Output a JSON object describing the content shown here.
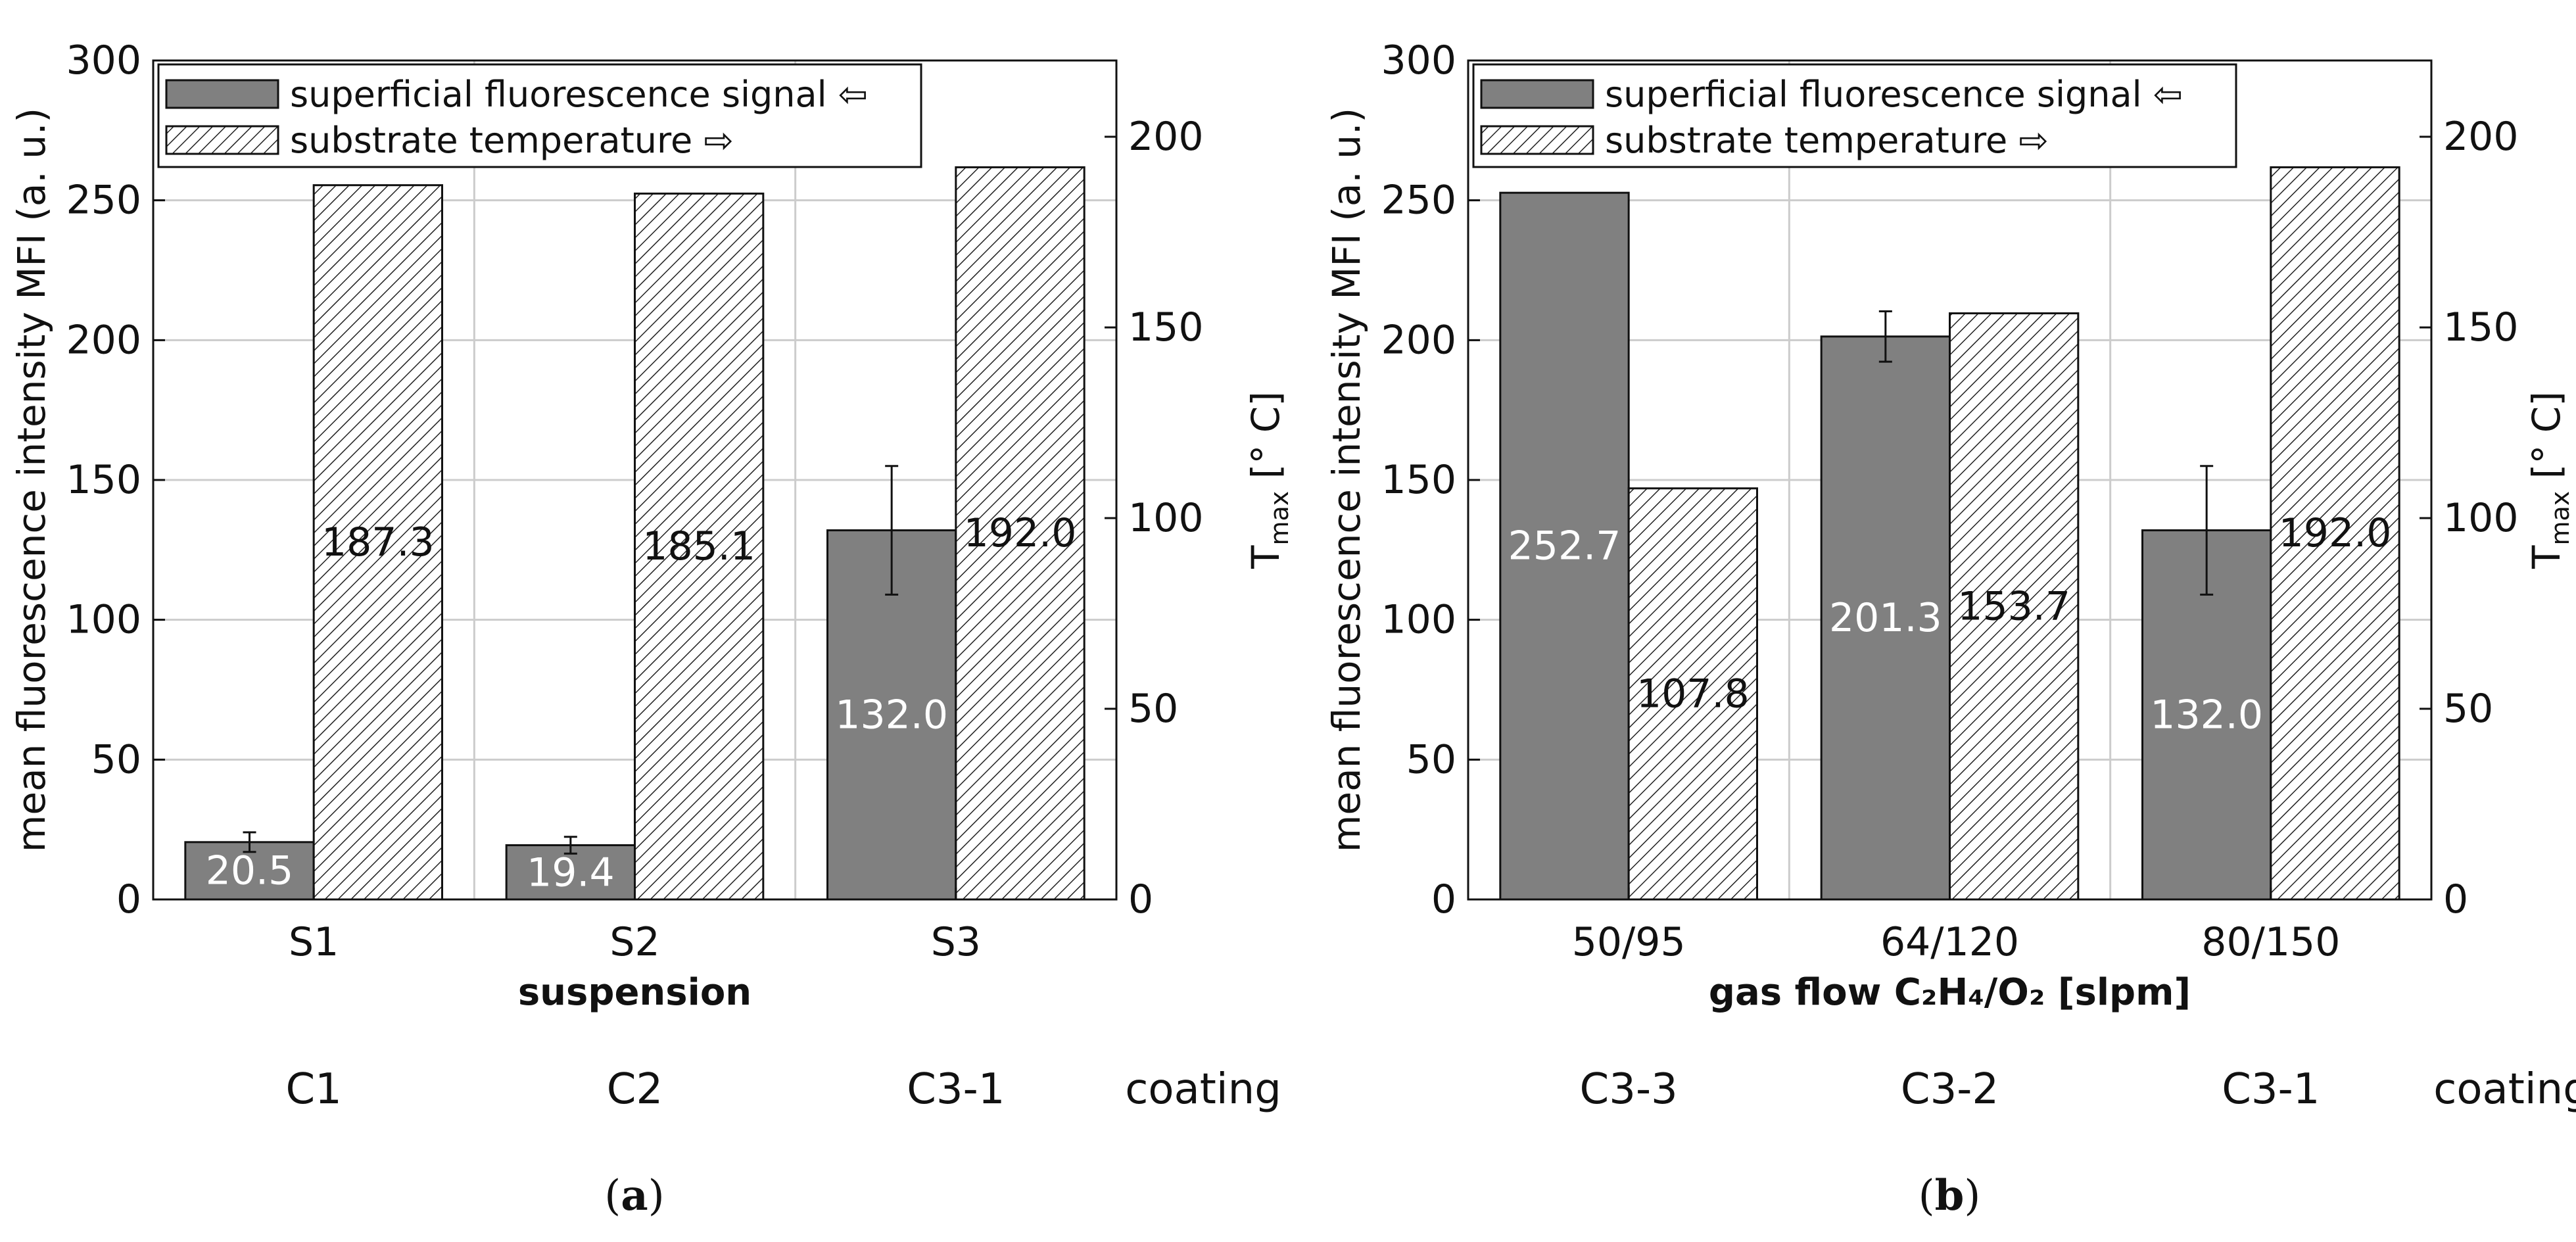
{
  "chart_data": [
    {
      "type": "bar",
      "panel_label": "a",
      "categories": [
        "S1",
        "S2",
        "S3"
      ],
      "coatings": [
        "C1",
        "C2",
        "C3-1"
      ],
      "coating_label": "coating",
      "xlabel": "suspension",
      "ylabel": "mean fluorescence intensity MFI (a. u.)",
      "y2label_main": "T",
      "y2label_sub": "max",
      "y2label_unit": " [° C]",
      "ylim": [
        0,
        300
      ],
      "y2lim": [
        0,
        220
      ],
      "yticks": [
        0,
        50,
        100,
        150,
        200,
        250,
        300
      ],
      "y2ticks": [
        0,
        50,
        100,
        150,
        200
      ],
      "grid": true,
      "legend_position": "top-left",
      "series": [
        {
          "name": "superficial fluorescence signal ⇦",
          "axis": "left",
          "style": "solid-gray",
          "values": [
            20.5,
            19.4,
            132.0
          ],
          "labels": [
            "20.5",
            "19.4",
            "132.0"
          ],
          "errors": [
            3.5,
            3.0,
            23.0
          ]
        },
        {
          "name": "substrate temperature ⇨",
          "axis": "right",
          "style": "hatched",
          "values": [
            187.3,
            185.1,
            192.0
          ],
          "labels": [
            "187.3",
            "185.1",
            "192.0"
          ]
        }
      ]
    },
    {
      "type": "bar",
      "panel_label": "b",
      "categories": [
        "50/95",
        "64/120",
        "80/150"
      ],
      "coatings": [
        "C3-3",
        "C3-2",
        "C3-1"
      ],
      "coating_label": "coating",
      "xlabel": "gas flow C₂H₄/O₂ [slpm]",
      "ylabel": "mean fluorescence intensity MFI (a. u.)",
      "y2label_main": "T",
      "y2label_sub": "max",
      "y2label_unit": " [° C]",
      "ylim": [
        0,
        300
      ],
      "y2lim": [
        0,
        220
      ],
      "yticks": [
        0,
        50,
        100,
        150,
        200,
        250,
        300
      ],
      "y2ticks": [
        0,
        50,
        100,
        150,
        200
      ],
      "grid": true,
      "legend_position": "top-left",
      "series": [
        {
          "name": "superficial fluorescence signal ⇦",
          "axis": "left",
          "style": "solid-gray",
          "values": [
            252.7,
            201.3,
            132.0
          ],
          "labels": [
            "252.7",
            "201.3",
            "132.0"
          ],
          "errors": [
            0,
            9.0,
            23.0
          ]
        },
        {
          "name": "substrate temperature ⇨",
          "axis": "right",
          "style": "hatched",
          "values": [
            107.8,
            153.7,
            192.0
          ],
          "labels": [
            "107.8",
            "153.7",
            "192.0"
          ]
        }
      ]
    }
  ],
  "colors": {
    "solid_bar": "#808080",
    "hatch": "#222222",
    "grid": "#cccccc",
    "label_light": "#ffffff",
    "label_dark": "#111111"
  }
}
